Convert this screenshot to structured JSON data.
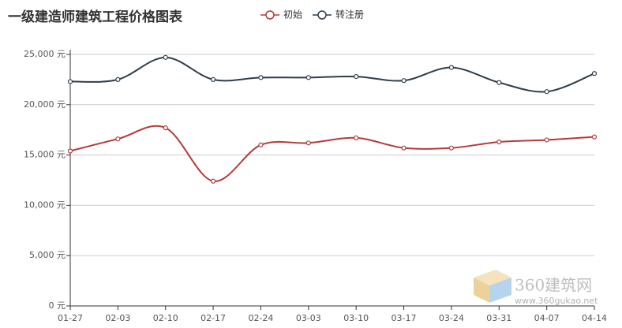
{
  "chart_data": {
    "type": "line",
    "title": "一级建造师建筑工程价格图表",
    "categories": [
      "01-27",
      "02-03",
      "02-10",
      "02-17",
      "02-24",
      "03-03",
      "03-10",
      "03-17",
      "03-24",
      "03-31",
      "04-07",
      "04-14"
    ],
    "series": [
      {
        "name": "初始",
        "color": "#b5393b",
        "values": [
          15400,
          16600,
          17700,
          12400,
          16000,
          16200,
          16700,
          15700,
          15700,
          16300,
          16500,
          16800
        ]
      },
      {
        "name": "转注册",
        "color": "#2f3d4a",
        "values": [
          22300,
          22500,
          24700,
          22500,
          22700,
          22700,
          22800,
          22400,
          23700,
          22200,
          21300,
          23100
        ]
      }
    ],
    "ylim": [
      0,
      25000
    ],
    "yticks": [
      {
        "value": 0,
        "label": "0 元"
      },
      {
        "value": 5000,
        "label": "5,000 元"
      },
      {
        "value": 10000,
        "label": "10,000 元"
      },
      {
        "value": 15000,
        "label": "15,000 元"
      },
      {
        "value": 20000,
        "label": "20,000 元"
      },
      {
        "value": 25000,
        "label": "25,000 元"
      }
    ],
    "grid": true,
    "smooth": true,
    "watermark": {
      "name": "360建筑网",
      "url": "www.360gukao.net"
    }
  }
}
